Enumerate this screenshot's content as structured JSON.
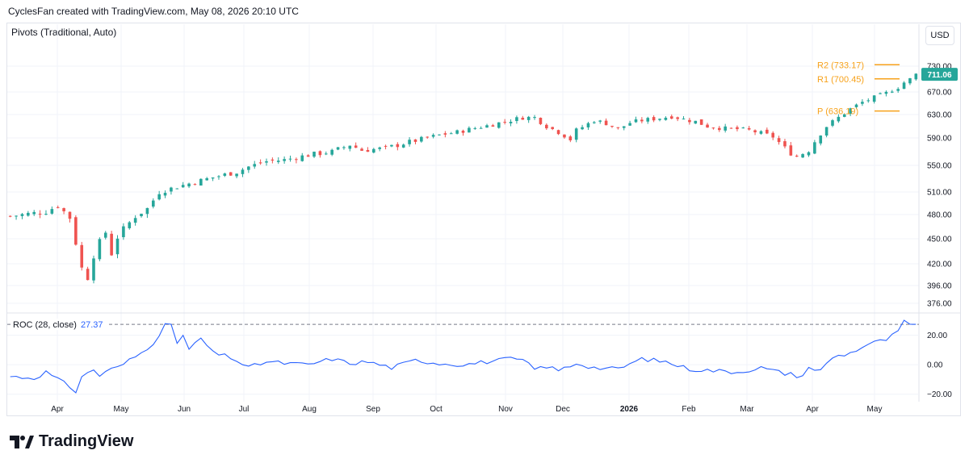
{
  "header": {
    "title": "CyclesFan created with TradingView.com, May 08, 2026 20:10 UTC"
  },
  "indicator": {
    "label": "Pivots (Traditional, Auto)"
  },
  "currency": {
    "label": "USD"
  },
  "footer": {
    "brand": "TradingView",
    "logo_icon": "tradingview-logo-icon"
  },
  "colors": {
    "up": "#26a69a",
    "down": "#ef5350",
    "pivot": "#f7a21b",
    "roc": "#2962ff",
    "grid": "#f0f3fa"
  },
  "chart_data": [
    {
      "type": "candlestick",
      "title": "",
      "ylim": [
        365,
        745
      ],
      "y_ticks": [
        "376.00",
        "396.00",
        "420.00",
        "450.00",
        "480.00",
        "510.00",
        "550.00",
        "590.00",
        "630.00",
        "670.00",
        "730.00"
      ],
      "x_labels": [
        "Apr",
        "May",
        "Jun",
        "Jul",
        "Aug",
        "Sep",
        "Oct",
        "Nov",
        "Dec",
        "2026",
        "Feb",
        "Mar",
        "Apr",
        "May"
      ],
      "last_price": "711.06",
      "last_price_value": 711.06,
      "pivots": [
        {
          "label": "R2 (733.17)",
          "value": 733.17
        },
        {
          "label": "R1 (700.45)",
          "value": 700.45
        },
        {
          "label": "P (636.19)",
          "value": 636.19
        }
      ],
      "close_path": [
        [
          0,
          478
        ],
        [
          6,
          484
        ],
        [
          8,
          492
        ],
        [
          10,
          476
        ],
        [
          11,
          445
        ],
        [
          12,
          415
        ],
        [
          13,
          405
        ],
        [
          14,
          430
        ],
        [
          15,
          446
        ],
        [
          16,
          458
        ],
        [
          17,
          432
        ],
        [
          18,
          452
        ],
        [
          19,
          462
        ],
        [
          21,
          478
        ],
        [
          23,
          488
        ],
        [
          25,
          510
        ],
        [
          28,
          518
        ],
        [
          31,
          525
        ],
        [
          34,
          532
        ],
        [
          38,
          540
        ],
        [
          40,
          548
        ],
        [
          43,
          556
        ],
        [
          46,
          558
        ],
        [
          50,
          565
        ],
        [
          54,
          570
        ],
        [
          57,
          580
        ],
        [
          59,
          572
        ],
        [
          63,
          575
        ],
        [
          66,
          582
        ],
        [
          69,
          588
        ],
        [
          72,
          595
        ],
        [
          75,
          600
        ],
        [
          78,
          607
        ],
        [
          80,
          611
        ],
        [
          83,
          618
        ],
        [
          86,
          625
        ],
        [
          88,
          625
        ],
        [
          90,
          610
        ],
        [
          92,
          600
        ],
        [
          94,
          588
        ],
        [
          95,
          603
        ],
        [
          98,
          620
        ],
        [
          100,
          615
        ],
        [
          102,
          605
        ],
        [
          104,
          616
        ],
        [
          106,
          620
        ],
        [
          109,
          624
        ],
        [
          111,
          627
        ],
        [
          113,
          622
        ],
        [
          115,
          618
        ],
        [
          117,
          610
        ],
        [
          120,
          606
        ],
        [
          122,
          605
        ],
        [
          124,
          603
        ],
        [
          126,
          598
        ],
        [
          128,
          592
        ],
        [
          130,
          575
        ],
        [
          131,
          568
        ],
        [
          132,
          563
        ],
        [
          134,
          572
        ],
        [
          135,
          585
        ],
        [
          137,
          610
        ],
        [
          139,
          625
        ],
        [
          141,
          640
        ],
        [
          143,
          652
        ],
        [
          145,
          660
        ],
        [
          147,
          668
        ],
        [
          149,
          680
        ],
        [
          150,
          692
        ],
        [
          151,
          700
        ],
        [
          152,
          711.06
        ]
      ],
      "series": [
        {
          "name": "ROC (28, close)",
          "last_value": "27.37"
        }
      ]
    },
    {
      "type": "line",
      "title": "ROC (28, close)",
      "last_value": "27.37",
      "last_value_num": 27.37,
      "ylim": [
        -24,
        34
      ],
      "y_ticks": [
        "20.00",
        "0.00",
        "−20.00"
      ],
      "y_tick_values": [
        20,
        0,
        -20
      ],
      "x": [
        0,
        4,
        6,
        8,
        10,
        11,
        12,
        13,
        14,
        15,
        16,
        18,
        20,
        22,
        24,
        26,
        27,
        28,
        29,
        30,
        32,
        34,
        37,
        40,
        43,
        46,
        50,
        54,
        57,
        60,
        64,
        68,
        72,
        76,
        80,
        84,
        86,
        88,
        90,
        92,
        95,
        98,
        102,
        106,
        110,
        114,
        118,
        122,
        126,
        130,
        131,
        132,
        134,
        136,
        138,
        141,
        144,
        147,
        149,
        150,
        151,
        152
      ],
      "values": [
        -8,
        -9,
        -5,
        -10,
        -15,
        -18,
        -8,
        -6,
        -3,
        -8,
        -4,
        -2,
        3,
        8,
        15,
        27,
        26,
        15,
        20,
        10,
        18,
        8,
        5,
        -2,
        2,
        1,
        0,
        4,
        1,
        2,
        -2,
        3,
        1,
        0,
        2,
        4,
        3,
        -3,
        -1,
        -4,
        1,
        -2,
        -3,
        4,
        2,
        -3,
        -4,
        -5,
        -2,
        -6,
        -5,
        -10,
        -2,
        -4,
        5,
        8,
        14,
        17,
        22,
        30,
        27.5,
        27.37
      ]
    }
  ]
}
